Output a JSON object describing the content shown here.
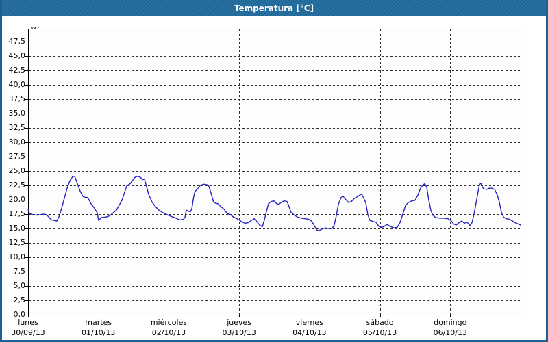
{
  "window": {
    "title": "Temperatura [°C]"
  },
  "colors": {
    "titlebar_bg": "#206a9e",
    "frame_border": "#1d6090",
    "plot_border": "#000000",
    "gridline": "#2e2e2e",
    "series_line": "#2323c0",
    "label_text": "#000000",
    "plot_bg": "#fdfdfd"
  },
  "chart_data": {
    "type": "line",
    "title": "Temperatura [°C]",
    "y_unit_label": "°C",
    "ylabel": "",
    "xlabel": "",
    "ylim": [
      0,
      50
    ],
    "y_tick_step": 2.5,
    "grid": "dashed",
    "legend_position": "none",
    "y_ticks": [
      {
        "value": 0.0,
        "label": "0,0"
      },
      {
        "value": 2.5,
        "label": "2,5"
      },
      {
        "value": 5.0,
        "label": "5,0"
      },
      {
        "value": 7.5,
        "label": "7,5"
      },
      {
        "value": 10.0,
        "label": "10,0"
      },
      {
        "value": 12.5,
        "label": "12,5"
      },
      {
        "value": 15.0,
        "label": "15,0"
      },
      {
        "value": 17.5,
        "label": "17,5"
      },
      {
        "value": 20.0,
        "label": "20,0"
      },
      {
        "value": 22.5,
        "label": "22,5"
      },
      {
        "value": 25.0,
        "label": "25,0"
      },
      {
        "value": 27.5,
        "label": "27,5"
      },
      {
        "value": 30.0,
        "label": "30,0"
      },
      {
        "value": 32.5,
        "label": "32,5"
      },
      {
        "value": 35.0,
        "label": "35,0"
      },
      {
        "value": 37.5,
        "label": "37,5"
      },
      {
        "value": 40.0,
        "label": "40,0"
      },
      {
        "value": 42.5,
        "label": "42,5"
      },
      {
        "value": 45.0,
        "label": "45,0"
      },
      {
        "value": 47.5,
        "label": "47,5"
      }
    ],
    "x_days": [
      {
        "name": "lunes",
        "date": "30/09/13"
      },
      {
        "name": "martes",
        "date": "01/10/13"
      },
      {
        "name": "miércoles",
        "date": "02/10/13"
      },
      {
        "name": "jueves",
        "date": "03/10/13"
      },
      {
        "name": "viernes",
        "date": "04/10/13"
      },
      {
        "name": "sábado",
        "date": "05/10/13"
      },
      {
        "name": "domingo",
        "date": "06/10/13"
      }
    ],
    "series": [
      {
        "name": "Temperatura",
        "color": "#2323c0",
        "points": [
          [
            0.0,
            18.4
          ],
          [
            0.02,
            17.6
          ],
          [
            0.068,
            17.4
          ],
          [
            0.136,
            17.3
          ],
          [
            0.214,
            17.5
          ],
          [
            0.263,
            17.4
          ],
          [
            0.331,
            16.5
          ],
          [
            0.409,
            16.3
          ],
          [
            0.438,
            17.0
          ],
          [
            0.477,
            18.5
          ],
          [
            0.516,
            20.3
          ],
          [
            0.555,
            22.0
          ],
          [
            0.594,
            23.3
          ],
          [
            0.633,
            24.0
          ],
          [
            0.662,
            24.1
          ],
          [
            0.701,
            22.8
          ],
          [
            0.74,
            21.5
          ],
          [
            0.779,
            20.6
          ],
          [
            0.818,
            20.4
          ],
          [
            0.847,
            20.4
          ],
          [
            0.896,
            19.3
          ],
          [
            0.944,
            18.5
          ],
          [
            0.983,
            17.7
          ],
          [
            1.003,
            16.4
          ],
          [
            1.042,
            16.9
          ],
          [
            1.11,
            17.0
          ],
          [
            1.158,
            17.2
          ],
          [
            1.256,
            18.2
          ],
          [
            1.334,
            19.9
          ],
          [
            1.402,
            22.4
          ],
          [
            1.451,
            22.8
          ],
          [
            1.519,
            23.9
          ],
          [
            1.558,
            24.1
          ],
          [
            1.597,
            23.9
          ],
          [
            1.626,
            23.5
          ],
          [
            1.655,
            23.6
          ],
          [
            1.714,
            20.9
          ],
          [
            1.762,
            19.6
          ],
          [
            1.811,
            18.8
          ],
          [
            1.869,
            18.1
          ],
          [
            1.937,
            17.6
          ],
          [
            1.996,
            17.3
          ],
          [
            2.035,
            17.1
          ],
          [
            2.083,
            16.9
          ],
          [
            2.152,
            16.5
          ],
          [
            2.21,
            16.6
          ],
          [
            2.23,
            17.0
          ],
          [
            2.249,
            18.2
          ],
          [
            2.278,
            18.0
          ],
          [
            2.307,
            17.9
          ],
          [
            2.327,
            18.4
          ],
          [
            2.352,
            20.4
          ],
          [
            2.371,
            21.4
          ],
          [
            2.41,
            21.9
          ],
          [
            2.449,
            22.5
          ],
          [
            2.498,
            22.7
          ],
          [
            2.546,
            22.6
          ],
          [
            2.566,
            22.4
          ],
          [
            2.595,
            21.4
          ],
          [
            2.634,
            19.7
          ],
          [
            2.663,
            19.4
          ],
          [
            2.702,
            19.3
          ],
          [
            2.741,
            18.8
          ],
          [
            2.79,
            18.3
          ],
          [
            2.829,
            17.6
          ],
          [
            2.878,
            17.4
          ],
          [
            2.917,
            17.0
          ],
          [
            2.956,
            16.8
          ],
          [
            3.009,
            16.4
          ],
          [
            3.047,
            16.1
          ],
          [
            3.086,
            15.9
          ],
          [
            3.125,
            16.0
          ],
          [
            3.174,
            16.4
          ],
          [
            3.213,
            16.7
          ],
          [
            3.252,
            16.2
          ],
          [
            3.291,
            15.6
          ],
          [
            3.33,
            15.3
          ],
          [
            3.359,
            16.5
          ],
          [
            3.388,
            18.0
          ],
          [
            3.417,
            19.3
          ],
          [
            3.456,
            19.7
          ],
          [
            3.495,
            19.8
          ],
          [
            3.534,
            19.3
          ],
          [
            3.563,
            19.2
          ],
          [
            3.602,
            19.6
          ],
          [
            3.641,
            19.8
          ],
          [
            3.68,
            19.7
          ],
          [
            3.709,
            18.8
          ],
          [
            3.738,
            17.8
          ],
          [
            3.777,
            17.4
          ],
          [
            3.826,
            17.0
          ],
          [
            3.884,
            16.8
          ],
          [
            3.943,
            16.7
          ],
          [
            3.991,
            16.6
          ],
          [
            4.03,
            16.3
          ],
          [
            4.069,
            15.5
          ],
          [
            4.098,
            14.8
          ],
          [
            4.127,
            14.6
          ],
          [
            4.176,
            14.9
          ],
          [
            4.225,
            15.1
          ],
          [
            4.273,
            15.0
          ],
          [
            4.322,
            15.0
          ],
          [
            4.351,
            15.6
          ],
          [
            4.38,
            17.2
          ],
          [
            4.41,
            19.2
          ],
          [
            4.449,
            20.4
          ],
          [
            4.478,
            20.6
          ],
          [
            4.517,
            20.0
          ],
          [
            4.556,
            19.5
          ],
          [
            4.595,
            19.7
          ],
          [
            4.634,
            20.2
          ],
          [
            4.673,
            20.5
          ],
          [
            4.712,
            20.8
          ],
          [
            4.741,
            21.0
          ],
          [
            4.77,
            20.3
          ],
          [
            4.799,
            19.5
          ],
          [
            4.829,
            17.4
          ],
          [
            4.858,
            16.4
          ],
          [
            4.907,
            16.2
          ],
          [
            4.946,
            16.1
          ],
          [
            4.984,
            15.4
          ],
          [
            5.023,
            15.2
          ],
          [
            5.053,
            15.3
          ],
          [
            5.101,
            15.7
          ],
          [
            5.14,
            15.4
          ],
          [
            5.199,
            15.1
          ],
          [
            5.247,
            15.2
          ],
          [
            5.286,
            16.0
          ],
          [
            5.325,
            17.5
          ],
          [
            5.364,
            19.0
          ],
          [
            5.403,
            19.5
          ],
          [
            5.452,
            19.8
          ],
          [
            5.5,
            19.9
          ],
          [
            5.539,
            20.8
          ],
          [
            5.578,
            22.0
          ],
          [
            5.607,
            22.5
          ],
          [
            5.636,
            22.8
          ],
          [
            5.666,
            22.2
          ],
          [
            5.695,
            19.9
          ],
          [
            5.724,
            18.2
          ],
          [
            5.753,
            17.3
          ],
          [
            5.792,
            16.9
          ],
          [
            5.85,
            16.8
          ],
          [
            5.909,
            16.8
          ],
          [
            5.967,
            16.7
          ],
          [
            6.017,
            16.3
          ],
          [
            6.046,
            15.8
          ],
          [
            6.085,
            15.6
          ],
          [
            6.124,
            16.0
          ],
          [
            6.163,
            16.3
          ],
          [
            6.202,
            15.9
          ],
          [
            6.241,
            16.1
          ],
          [
            6.28,
            15.5
          ],
          [
            6.309,
            16.0
          ],
          [
            6.338,
            17.5
          ],
          [
            6.368,
            19.5
          ],
          [
            6.397,
            21.5
          ],
          [
            6.416,
            22.6
          ],
          [
            6.436,
            22.9
          ],
          [
            6.455,
            22.3
          ],
          [
            6.475,
            21.9
          ],
          [
            6.514,
            21.8
          ],
          [
            6.553,
            22.0
          ],
          [
            6.592,
            22.0
          ],
          [
            6.631,
            21.8
          ],
          [
            6.67,
            20.8
          ],
          [
            6.699,
            19.5
          ],
          [
            6.728,
            17.8
          ],
          [
            6.757,
            17.0
          ],
          [
            6.796,
            16.7
          ],
          [
            6.845,
            16.6
          ],
          [
            6.884,
            16.3
          ],
          [
            6.923,
            16.0
          ],
          [
            6.962,
            15.8
          ],
          [
            7.0,
            15.6
          ]
        ]
      }
    ]
  }
}
